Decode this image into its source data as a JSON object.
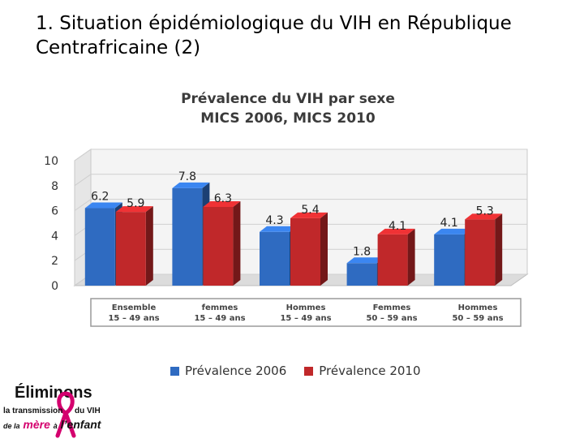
{
  "slide": {
    "title": "1. Situation épidémiologique du VIH en République Centrafricaine (2)"
  },
  "chart_data": {
    "type": "bar",
    "title_line1": "Prévalence du VIH par sexe",
    "title_line2": "MICS 2006, MICS 2010",
    "ylim": [
      0,
      10
    ],
    "yticks": [
      "0",
      "2",
      "4",
      "6",
      "8",
      "10"
    ],
    "categories": [
      {
        "line1": "Ensemble",
        "line2": "15 – 49 ans"
      },
      {
        "line1": "femmes",
        "line2": "15 – 49 ans"
      },
      {
        "line1": "Hommes",
        "line2": "15 – 49 ans"
      },
      {
        "line1": "Femmes",
        "line2": "50 – 59 ans"
      },
      {
        "line1": "Hommes",
        "line2": "50 – 59 ans"
      }
    ],
    "series": [
      {
        "name": "Prévalence 2006",
        "color": "#2f6bc1",
        "values": [
          6.2,
          7.8,
          4.3,
          1.8,
          4.1
        ],
        "labels": [
          "6.2",
          "7.8",
          "4.3",
          "1.8",
          "4.1"
        ]
      },
      {
        "name": "Prévalence 2010",
        "color": "#c0282a",
        "values": [
          5.9,
          6.3,
          5.4,
          4.1,
          5.3
        ],
        "labels": [
          "5.9",
          "6.3",
          "5.4",
          "4.1",
          "5.3"
        ]
      }
    ],
    "legend_position": "bottom"
  },
  "logo": {
    "line1": "Éliminons",
    "line2a": "la transmission",
    "line2b": "du VIH",
    "line3a": "de la",
    "line3b": "mère",
    "line3c": "à",
    "line3d": "l’enfant",
    "ribbon_color": "#d4006e"
  }
}
